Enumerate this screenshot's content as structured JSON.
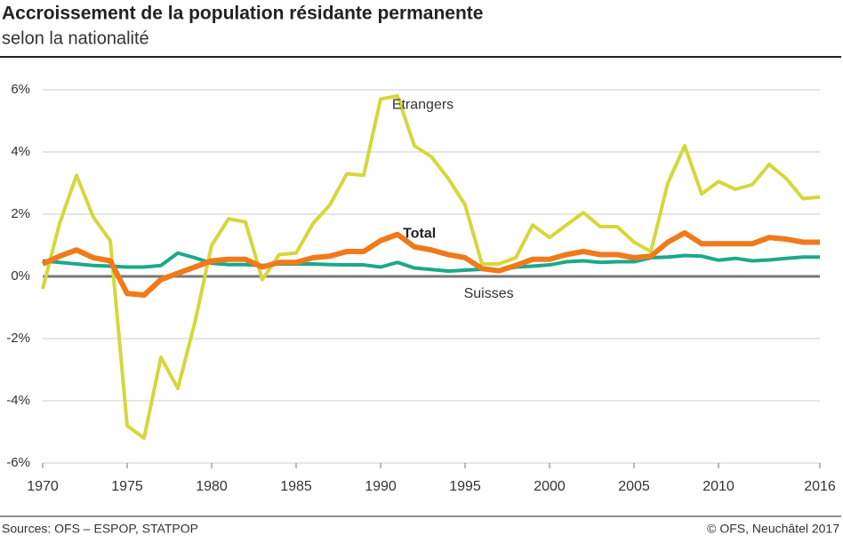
{
  "chart_data": {
    "type": "line",
    "title": "Accroissement de la population résidante permanente",
    "subtitle": "selon la nationalité",
    "source": "Sources: OFS – ESPOP, STATPOP",
    "copyright": "© OFS, Neuchâtel 2017",
    "x": [
      1970,
      1971,
      1972,
      1973,
      1974,
      1975,
      1976,
      1977,
      1978,
      1979,
      1980,
      1981,
      1982,
      1983,
      1984,
      1985,
      1986,
      1987,
      1988,
      1989,
      1990,
      1991,
      1992,
      1993,
      1994,
      1995,
      1996,
      1997,
      1998,
      1999,
      2000,
      2001,
      2002,
      2003,
      2004,
      2005,
      2006,
      2007,
      2008,
      2009,
      2010,
      2011,
      2012,
      2013,
      2014,
      2015,
      2016
    ],
    "series": [
      {
        "name": "Etrangers",
        "color": "#d4d83a",
        "values": [
          -0.4,
          1.7,
          3.25,
          1.9,
          1.15,
          -4.8,
          -5.2,
          -2.6,
          -3.6,
          -1.5,
          1.0,
          1.85,
          1.75,
          -0.1,
          0.7,
          0.75,
          1.7,
          2.3,
          3.3,
          3.25,
          5.7,
          5.8,
          4.2,
          3.85,
          3.15,
          2.3,
          0.4,
          0.4,
          0.6,
          1.65,
          1.25,
          1.65,
          2.05,
          1.6,
          1.6,
          1.1,
          0.8,
          3.0,
          4.2,
          2.65,
          3.05,
          2.8,
          2.95,
          3.6,
          3.15,
          2.5,
          2.55
        ]
      },
      {
        "name": "Suisses",
        "color": "#1aa98a",
        "values": [
          0.5,
          0.45,
          0.4,
          0.35,
          0.33,
          0.3,
          0.3,
          0.35,
          0.75,
          0.6,
          0.42,
          0.38,
          0.38,
          0.35,
          0.4,
          0.4,
          0.4,
          0.38,
          0.37,
          0.37,
          0.3,
          0.45,
          0.27,
          0.22,
          0.17,
          0.2,
          0.23,
          0.2,
          0.3,
          0.33,
          0.37,
          0.47,
          0.5,
          0.45,
          0.47,
          0.47,
          0.6,
          0.62,
          0.67,
          0.65,
          0.52,
          0.58,
          0.5,
          0.53,
          0.58,
          0.62,
          0.62
        ]
      },
      {
        "name": "Total",
        "color": "#f07a1a",
        "values": [
          0.4,
          0.65,
          0.85,
          0.6,
          0.5,
          -0.55,
          -0.6,
          -0.1,
          0.1,
          0.3,
          0.5,
          0.55,
          0.55,
          0.3,
          0.45,
          0.45,
          0.6,
          0.65,
          0.8,
          0.8,
          1.15,
          1.35,
          0.95,
          0.85,
          0.7,
          0.6,
          0.25,
          0.18,
          0.35,
          0.55,
          0.55,
          0.7,
          0.8,
          0.7,
          0.7,
          0.6,
          0.65,
          1.1,
          1.4,
          1.05,
          1.05,
          1.05,
          1.05,
          1.25,
          1.2,
          1.1,
          1.1
        ]
      }
    ],
    "xlim": [
      1970,
      2016
    ],
    "xticks": [
      1970,
      1975,
      1980,
      1985,
      1990,
      1995,
      2000,
      2005,
      2010,
      2016
    ],
    "ylim": [
      -6,
      6
    ],
    "yticks": [
      {
        "value": -6,
        "label": "-6%"
      },
      {
        "value": -4,
        "label": "-4%"
      },
      {
        "value": -2,
        "label": "-2%"
      },
      {
        "value": 0,
        "label": "0%"
      },
      {
        "value": 2,
        "label": "2%"
      },
      {
        "value": 4,
        "label": "4%"
      },
      {
        "value": 6,
        "label": "6%"
      }
    ],
    "grid": true
  }
}
